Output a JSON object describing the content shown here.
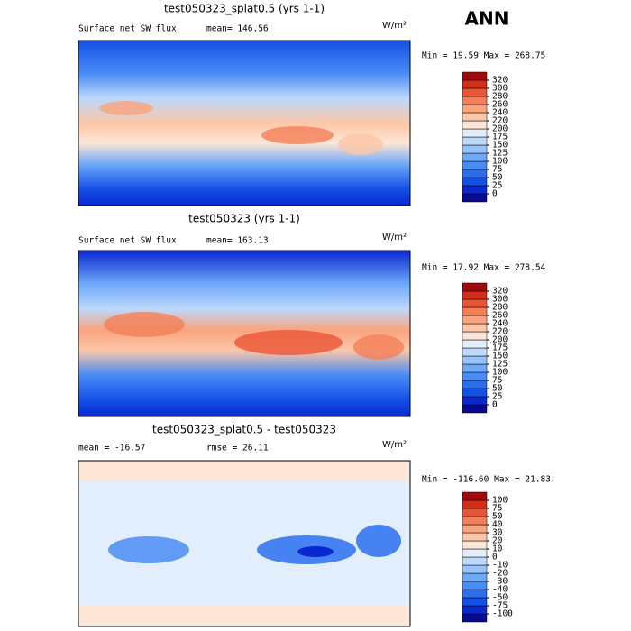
{
  "header": {
    "season": "ANN"
  },
  "panels": [
    {
      "title": "test050323_splat0.5 (yrs 1-1)",
      "left_label": "Surface net SW flux",
      "stat": "mean= 146.56",
      "unit": "W/m²",
      "minmax": "Min =  19.59 Max = 268.75",
      "levels": [
        0,
        25,
        50,
        75,
        100,
        125,
        150,
        175,
        200,
        220,
        240,
        260,
        280,
        300,
        320
      ],
      "colors": [
        "#0a0a8c",
        "#0a28d0",
        "#1450e6",
        "#2a6ef0",
        "#4a8cf5",
        "#6ea8f8",
        "#96c3fa",
        "#bcd8fb",
        "#e2eefc",
        "#fde6d6",
        "#fcc6a8",
        "#f9a47e",
        "#f47f58",
        "#ea5534",
        "#d42d1a",
        "#a00a0a"
      ]
    },
    {
      "title": "test050323 (yrs 1-1)",
      "left_label": "Surface net SW flux",
      "stat": "mean= 163.13",
      "unit": "W/m²",
      "minmax": "Min =  17.92 Max = 278.54",
      "levels": [
        0,
        25,
        50,
        75,
        100,
        125,
        150,
        175,
        200,
        220,
        240,
        260,
        280,
        300,
        320
      ],
      "colors": [
        "#0a0a8c",
        "#0a28d0",
        "#1450e6",
        "#2a6ef0",
        "#4a8cf5",
        "#6ea8f8",
        "#96c3fa",
        "#bcd8fb",
        "#e2eefc",
        "#fde6d6",
        "#fcc6a8",
        "#f9a47e",
        "#f47f58",
        "#ea5534",
        "#d42d1a",
        "#a00a0a"
      ]
    },
    {
      "title": "test050323_splat0.5 - test050323",
      "left_label": "mean = -16.57",
      "stat": "rmse =  26.11",
      "unit": "W/m²",
      "minmax": "Min = -116.60 Max =  21.83",
      "levels": [
        -100,
        -75,
        -50,
        -40,
        -30,
        -20,
        -10,
        0,
        10,
        20,
        30,
        40,
        50,
        75,
        100
      ],
      "colors": [
        "#0a0a8c",
        "#0a28d0",
        "#1450e6",
        "#2a6ef0",
        "#4a8cf5",
        "#6ea8f8",
        "#96c3fa",
        "#bcd8fb",
        "#e2eefc",
        "#fde6d6",
        "#fcc6a8",
        "#f9a47e",
        "#f47f58",
        "#ea5534",
        "#d42d1a",
        "#a00a0a"
      ]
    }
  ]
}
